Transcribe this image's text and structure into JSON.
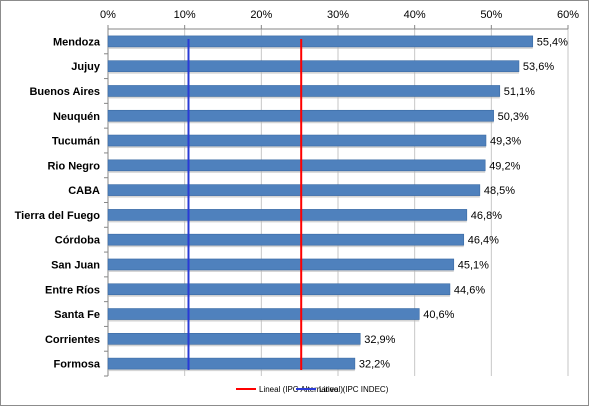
{
  "chart_data": {
    "type": "bar",
    "orientation": "horizontal",
    "categories": [
      "Mendoza",
      "Jujuy",
      "Buenos Aires",
      "Neuquén",
      "Tucumán",
      "Rio Negro",
      "CABA",
      "Tierra del Fuego",
      "Córdoba",
      "San Juan",
      "Entre Ríos",
      "Santa Fe",
      "Corrientes",
      "Formosa"
    ],
    "values": [
      55.4,
      53.6,
      51.1,
      50.3,
      49.3,
      49.2,
      48.5,
      46.8,
      46.4,
      45.1,
      44.6,
      40.6,
      32.9,
      32.2
    ],
    "data_labels": [
      "55,4%",
      "53,6%",
      "51,1%",
      "50,3%",
      "49,3%",
      "49,2%",
      "48,5%",
      "46,8%",
      "46,4%",
      "45,1%",
      "44,6%",
      "40,6%",
      "32,9%",
      "32,2%"
    ],
    "xlim": [
      0,
      60
    ],
    "x_ticks": [
      0,
      10,
      20,
      30,
      40,
      50,
      60
    ],
    "x_tick_labels": [
      "0%",
      "10%",
      "20%",
      "30%",
      "40%",
      "50%",
      "60%"
    ],
    "x_axis_position": "top",
    "grid": true,
    "bar_color": "#4f81bd",
    "reference_lines": [
      {
        "name": "Lineal (IPC Alternativo )",
        "value": 25.2,
        "color": "#ff0000"
      },
      {
        "name": "Lineal (IPC INDEC)",
        "value": 10.5,
        "color": "#2a3bd6"
      }
    ],
    "legend_position": "bottom"
  }
}
